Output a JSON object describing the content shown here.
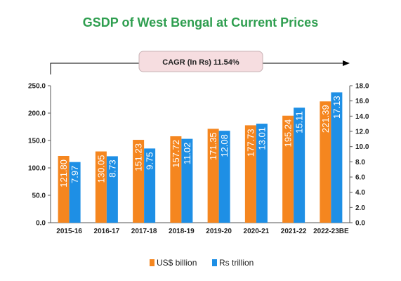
{
  "chart_data": {
    "type": "bar",
    "title": "GSDP of West Bengal at Current Prices",
    "annotation": "CAGR  (In Rs) 11.54%",
    "categories": [
      "2015-16",
      "2016-17",
      "2017-18",
      "2018-19",
      "2019-20",
      "2020-21",
      "2021-22",
      "2022-23BE"
    ],
    "series": [
      {
        "name": "US$ billion",
        "axis": "left",
        "color": "#f5861f",
        "values": [
          121.8,
          130.05,
          151.23,
          157.72,
          171.35,
          177.73,
          195.24,
          221.39
        ],
        "labels": [
          "121.80",
          "130.05",
          "151.23",
          "157.72",
          "171.35",
          "177.73",
          "195.24",
          "221.39"
        ]
      },
      {
        "name": "Rs trillion",
        "axis": "right",
        "color": "#1e8fe5",
        "values": [
          7.97,
          8.73,
          9.75,
          11.02,
          12.08,
          13.01,
          15.11,
          17.13
        ],
        "labels": [
          "7.97",
          "8.73",
          "9.75",
          "11.02",
          "12.08",
          "13.01",
          "15.11",
          "17.13"
        ]
      }
    ],
    "y_left": {
      "min": 0,
      "max": 250,
      "ticks": [
        "0.0",
        "50.0",
        "100.0",
        "150.0",
        "200.0",
        "250.0"
      ]
    },
    "y_right": {
      "min": 0,
      "max": 18,
      "ticks": [
        "0.0",
        "2.0",
        "4.0",
        "6.0",
        "8.0",
        "10.0",
        "12.0",
        "14.0",
        "16.0",
        "18.0"
      ]
    },
    "grid": false,
    "legend": "bottom-center"
  }
}
